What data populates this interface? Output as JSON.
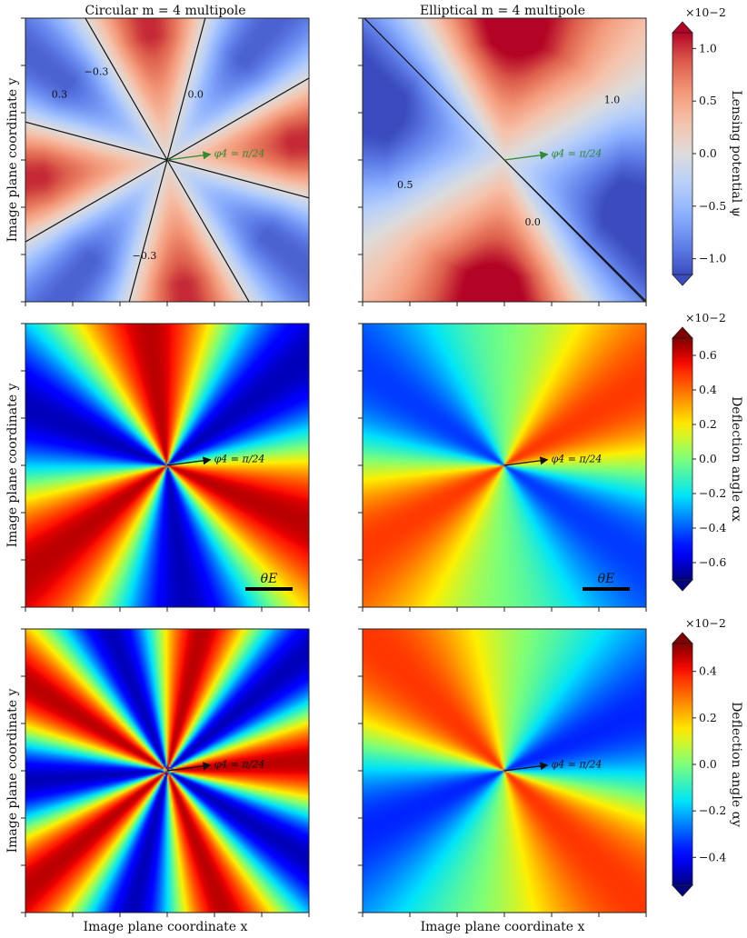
{
  "figure": {
    "ylabel": "Image plane coordinate y",
    "xlabel": "Image plane coordinate x",
    "column_titles": [
      "Circular m = 4 multipole",
      "Elliptical m = 4 multipole"
    ],
    "scale_bar_label": "θE"
  },
  "colors": {
    "coolwarm_low": "#3b4cc0",
    "coolwarm_mid": "#dddddd",
    "coolwarm_high": "#b40426",
    "circular_arrow": "#2e8b2e",
    "elliptical_arrow": "#3a8a3a",
    "contour_line": "#555555",
    "zero_line": "#111111"
  },
  "chart_data": [
    {
      "type": "heatmap",
      "panel": "row1-left",
      "quantity": "Lensing potential ψ",
      "multipole": "circular",
      "colormap": "coolwarm",
      "contour_levels": [
        -0.3,
        0.0,
        0.3
      ],
      "contour_labels": [
        "−0.3",
        "0.0",
        "0.3"
      ],
      "annotation": "φ4 = π/24",
      "phi4": 0.1309
    },
    {
      "type": "heatmap",
      "panel": "row1-right",
      "quantity": "Lensing potential ψ",
      "multipole": "elliptical",
      "colormap": "coolwarm",
      "contour_levels": [
        -0.5,
        0.0,
        0.5,
        1.0
      ],
      "contour_labels": [
        "0.0",
        "0.5",
        "1.0"
      ],
      "annotation": "φ4 = π/24",
      "phi4": 0.1309
    },
    {
      "type": "heatmap",
      "panel": "row2-left",
      "quantity": "Deflection angle αx",
      "multipole": "circular",
      "colormap": "jet",
      "annotation": "φ4 = π/24",
      "scale_bar": "θE"
    },
    {
      "type": "heatmap",
      "panel": "row2-right",
      "quantity": "Deflection angle αx",
      "multipole": "elliptical",
      "colormap": "jet",
      "annotation": "φ4 = π/24",
      "scale_bar": "θE"
    },
    {
      "type": "heatmap",
      "panel": "row3-left",
      "quantity": "Deflection angle αy",
      "multipole": "circular",
      "colormap": "jet",
      "annotation": "φ4 = π/24"
    },
    {
      "type": "heatmap",
      "panel": "row3-right",
      "quantity": "Deflection angle αy",
      "multipole": "elliptical",
      "colormap": "jet",
      "annotation": "φ4 = π/24"
    }
  ],
  "colorbars": [
    {
      "label": "Lensing potential ψ",
      "colormap": "coolwarm",
      "range": [
        -1.15,
        1.15
      ],
      "ticks": [
        -1.0,
        -0.5,
        0.0,
        0.5,
        1.0
      ],
      "tick_labels": [
        "−1.0",
        "−0.5",
        "0.0",
        "0.5",
        "1.0"
      ],
      "scale_factor": "×10−2"
    },
    {
      "label": "Deflection angle αx",
      "colormap": "jet",
      "range": [
        -0.7,
        0.7
      ],
      "ticks": [
        -0.6,
        -0.4,
        -0.2,
        0.0,
        0.2,
        0.4,
        0.6
      ],
      "tick_labels": [
        "−0.6",
        "−0.4",
        "−0.2",
        "0.0",
        "0.2",
        "0.4",
        "0.6"
      ],
      "scale_factor": "×10−2"
    },
    {
      "label": "Deflection angle αy",
      "colormap": "jet",
      "range": [
        -0.52,
        0.52
      ],
      "ticks": [
        -0.4,
        -0.2,
        0.0,
        0.2,
        0.4
      ],
      "tick_labels": [
        "−0.4",
        "−0.2",
        "0.0",
        "0.2",
        "0.4"
      ],
      "scale_factor": "×10−2"
    }
  ]
}
